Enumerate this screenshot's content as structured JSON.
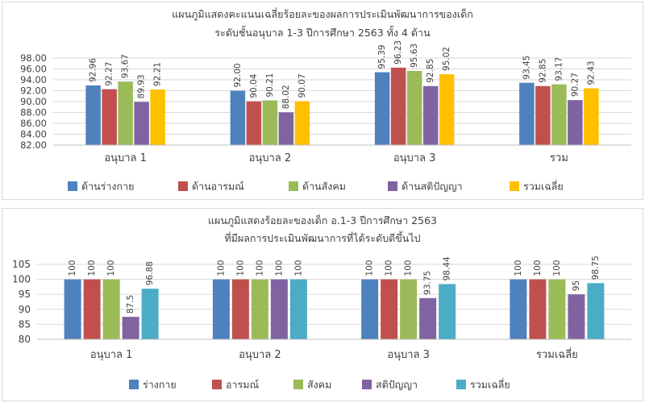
{
  "chart_data": [
    {
      "type": "bar",
      "title_line1": "แผนภูมิแสดงคะแนนเฉลี่ยร้อยละของผลการประเมินพัฒนาการของเด็ก",
      "title_line2": "ระดับชั้นอนุบาล    1-3 ปีการศึกษา 2563  ทั้ง 4 ด้าน",
      "categories": [
        "อนุบาล 1",
        "อนุบาล 2",
        "อนุบาล 3",
        "รวม"
      ],
      "ylim": [
        82,
        98
      ],
      "yticks": [
        "82.00",
        "84.00",
        "86.00",
        "88.00",
        "90.00",
        "92.00",
        "94.00",
        "96.00",
        "98.00"
      ],
      "grid": true,
      "legend_position": "bottom",
      "series": [
        {
          "name": "ด้านร่างกาย",
          "color": "#4f81bd",
          "values": [
            92.96,
            92.0,
            95.39,
            93.45
          ],
          "labels": [
            "92.96",
            "92.00",
            "95.39",
            "93.45"
          ]
        },
        {
          "name": "ด้านอารมณ์",
          "color": "#c0504d",
          "values": [
            92.27,
            90.04,
            96.23,
            92.85
          ],
          "labels": [
            "92.27",
            "90.04",
            "96.23",
            "92.85"
          ]
        },
        {
          "name": "ด้านสังคม",
          "color": "#9bbb59",
          "values": [
            93.67,
            90.21,
            95.63,
            93.17
          ],
          "labels": [
            "93.67",
            "90.21",
            "95.63",
            "93.17"
          ]
        },
        {
          "name": "ด้านสติปัญญา",
          "color": "#8064a2",
          "values": [
            89.93,
            88.02,
            92.85,
            90.27
          ],
          "labels": [
            "89.93",
            "88.02",
            "92.85",
            "90.27"
          ]
        },
        {
          "name": "รวมเฉลี่ย",
          "color": "#ffc000",
          "values": [
            92.21,
            90.07,
            95.02,
            92.43
          ],
          "labels": [
            "92.21",
            "90.07",
            "95.02",
            "92.43"
          ]
        }
      ]
    },
    {
      "type": "bar",
      "title_line1": "แผนภูมิแสดงร้อยละของเด็ก อ.1-3 ปีการศึกษา 2563",
      "title_line2": "ที่มีผลการประเมินพัฒนาการที่ได้ระดับดีขึ้นไป",
      "categories": [
        "อนุบาล 1",
        "อนุบาล 2",
        "อนุบาล 3",
        "รวมเฉลี่ย"
      ],
      "ylim": [
        80,
        105
      ],
      "yticks": [
        "80",
        "85",
        "90",
        "95",
        "100",
        "105"
      ],
      "grid": true,
      "legend_position": "bottom",
      "series": [
        {
          "name": "ร่างกาย",
          "color": "#4f81bd",
          "values": [
            100,
            100,
            100,
            100
          ],
          "labels": [
            "100",
            "100",
            "100",
            "100"
          ]
        },
        {
          "name": "อารมณ์",
          "color": "#c0504d",
          "values": [
            100,
            100,
            100,
            100
          ],
          "labels": [
            "100",
            "100",
            "100",
            "100"
          ]
        },
        {
          "name": "สังคม",
          "color": "#9bbb59",
          "values": [
            100,
            100,
            100,
            100
          ],
          "labels": [
            "100",
            "100",
            "100",
            "100"
          ]
        },
        {
          "name": "สติปัญญา",
          "color": "#8064a2",
          "values": [
            87.5,
            100,
            93.75,
            95
          ],
          "labels": [
            "87.5",
            "100",
            "93.75",
            "95"
          ]
        },
        {
          "name": "รวมเฉลี่ย",
          "color": "#4bacc6",
          "values": [
            96.88,
            100,
            98.44,
            98.75
          ],
          "labels": [
            "96.88",
            "100",
            "98.44",
            "98.75"
          ]
        }
      ]
    }
  ]
}
